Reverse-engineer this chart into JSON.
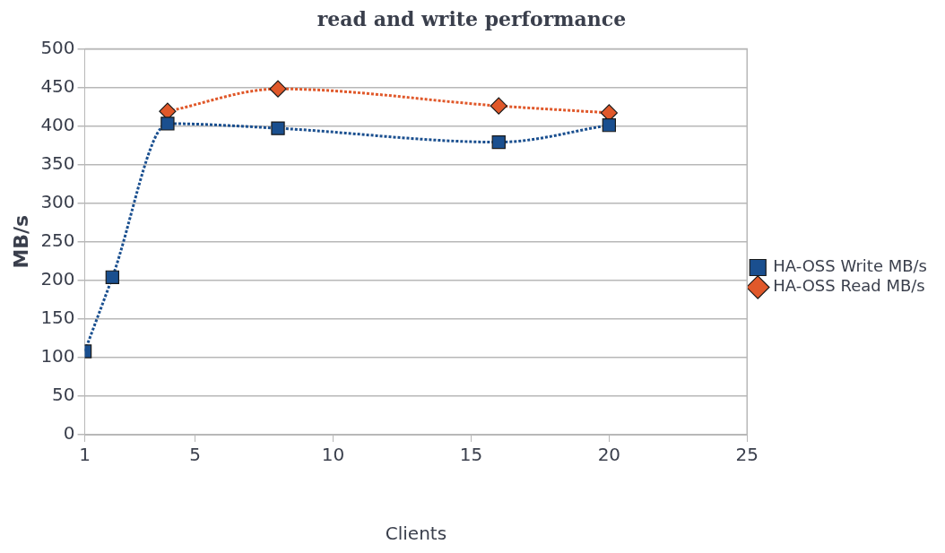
{
  "chart_data": {
    "type": "line",
    "title": "read and write performance",
    "xlabel": "Clients",
    "ylabel": "MB/s",
    "xlim": [
      1,
      25
    ],
    "xticks": [
      1,
      5,
      10,
      15,
      20,
      25
    ],
    "ylim": [
      0,
      500
    ],
    "yticks": [
      0,
      50,
      100,
      150,
      200,
      250,
      300,
      350,
      400,
      450,
      500
    ],
    "grid": "y",
    "legend": "right",
    "line_style": "dotted",
    "series": [
      {
        "name": "HA-OSS Write MB/s",
        "color": "#1a4f8f",
        "marker": "square",
        "x": [
          1,
          2,
          4,
          8,
          16,
          20
        ],
        "values": [
          108,
          204,
          403,
          397,
          379,
          401
        ]
      },
      {
        "name": "HA-OSS Read MB/s",
        "color": "#e0582a",
        "marker": "diamond",
        "x": [
          4,
          8,
          16,
          20
        ],
        "values": [
          419,
          448,
          426,
          417
        ]
      }
    ]
  }
}
